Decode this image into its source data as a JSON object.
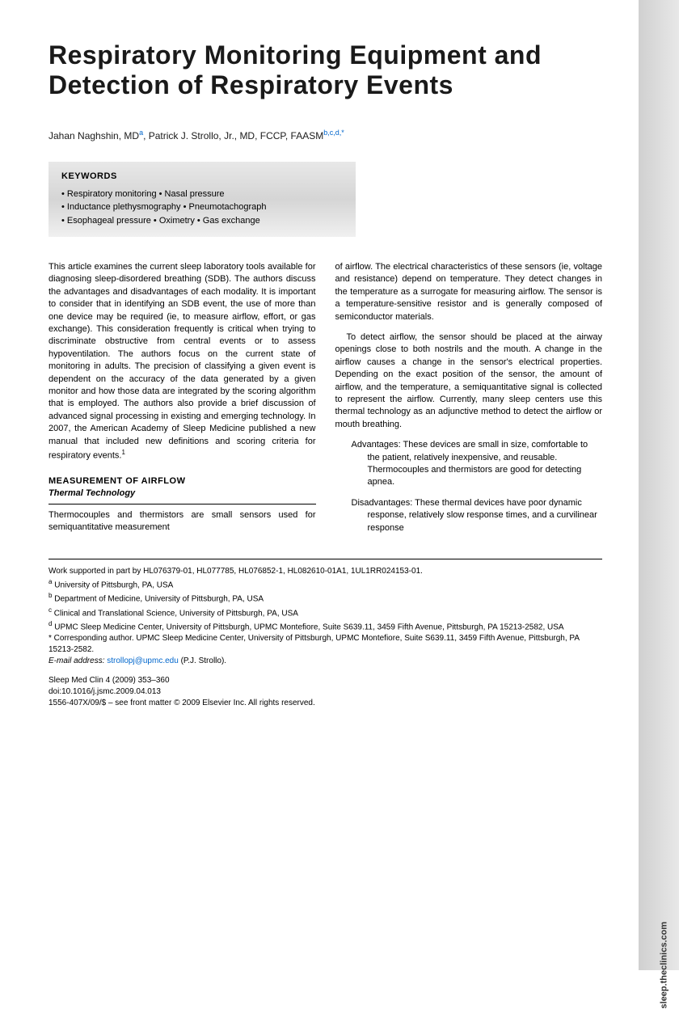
{
  "title": "Respiratory Monitoring Equipment and Detection of Respiratory Events",
  "authors_html": "Jahan Naghshin, MD",
  "author1_sup": "a",
  "author2": ", Patrick J. Strollo, Jr., MD, FCCP, FAASM",
  "author2_sup": "b,c,d,",
  "author2_star": "*",
  "keywords": {
    "title": "KEYWORDS",
    "line1": "• Respiratory monitoring • Nasal pressure",
    "line2": "• Inductance plethysmography • Pneumotachograph",
    "line3": "• Esophageal pressure • Oximetry • Gas exchange"
  },
  "col1": {
    "p1": "This article examines the current sleep laboratory tools available for diagnosing sleep-disordered breathing (SDB). The authors discuss the advantages and disadvantages of each modality. It is important to consider that in identifying an SDB event, the use of more than one device may be required (ie, to measure airflow, effort, or gas exchange). This consideration frequently is critical when trying to discriminate obstructive from central events or to assess hypoventilation. The authors focus on the current state of monitoring in adults. The precision of classifying a given event is dependent on the accuracy of the data generated by a given monitor and how those data are integrated by the scoring algorithm that is employed. The authors also provide a brief discussion of advanced signal processing in existing and emerging technology. In 2007, the American Academy of Sleep Medicine published a new manual that included new definitions and scoring criteria for respiratory events.",
    "ref1": "1",
    "section": "MEASUREMENT OF AIRFLOW",
    "subsection": "Thermal Technology",
    "p2": "Thermocouples and thermistors are small sensors used for semiquantitative measurement"
  },
  "col2": {
    "p1": "of airflow. The electrical characteristics of these sensors (ie, voltage and resistance) depend on temperature. They detect changes in the temperature as a surrogate for measuring airflow. The sensor is a temperature-sensitive resistor and is generally composed of semiconductor materials.",
    "p2": "To detect airflow, the sensor should be placed at the airway openings close to both nostrils and the mouth. A change in the airflow causes a change in the sensor's electrical properties. Depending on the exact position of the sensor, the amount of airflow, and the temperature, a semiquantitative signal is collected to represent the airflow. Currently, many sleep centers use this thermal technology as an adjunctive method to detect the airflow or mouth breathing.",
    "adv": "Advantages: These devices are small in size, comfortable to the patient, relatively inexpensive, and reusable. Thermocouples and thermistors are good for detecting apnea.",
    "disadv": "Disadvantages: These thermal devices have poor dynamic response, relatively slow response times, and a curvilinear response"
  },
  "footer": {
    "support": "Work supported in part by HL076379-01, HL077785, HL076852-1, HL082610-01A1, 1UL1RR024153-01.",
    "affil_a": "University of Pittsburgh, PA, USA",
    "affil_b": "Department of Medicine, University of Pittsburgh, PA, USA",
    "affil_c": "Clinical and Translational Science, University of Pittsburgh, PA, USA",
    "affil_d": "UPMC Sleep Medicine Center, University of Pittsburgh, UPMC Montefiore, Suite S639.11, 3459 Fifth Avenue, Pittsburgh, PA 15213-2582, USA",
    "corresponding": "* Corresponding author. UPMC Sleep Medicine Center, University of Pittsburgh, UPMC Montefiore, Suite S639.11, 3459 Fifth Avenue, Pittsburgh, PA 15213-2582.",
    "email_label": "E-mail address:",
    "email": "strollopj@upmc.edu",
    "email_suffix": "(P.J. Strollo).",
    "journal": "Sleep Med Clin 4 (2009) 353–360",
    "doi": "doi:10.1016/j.jsmc.2009.04.013",
    "copyright": "1556-407X/09/$ – see front matter © 2009 Elsevier Inc. All rights reserved."
  },
  "sidebar": "sleep.theclinics.com"
}
